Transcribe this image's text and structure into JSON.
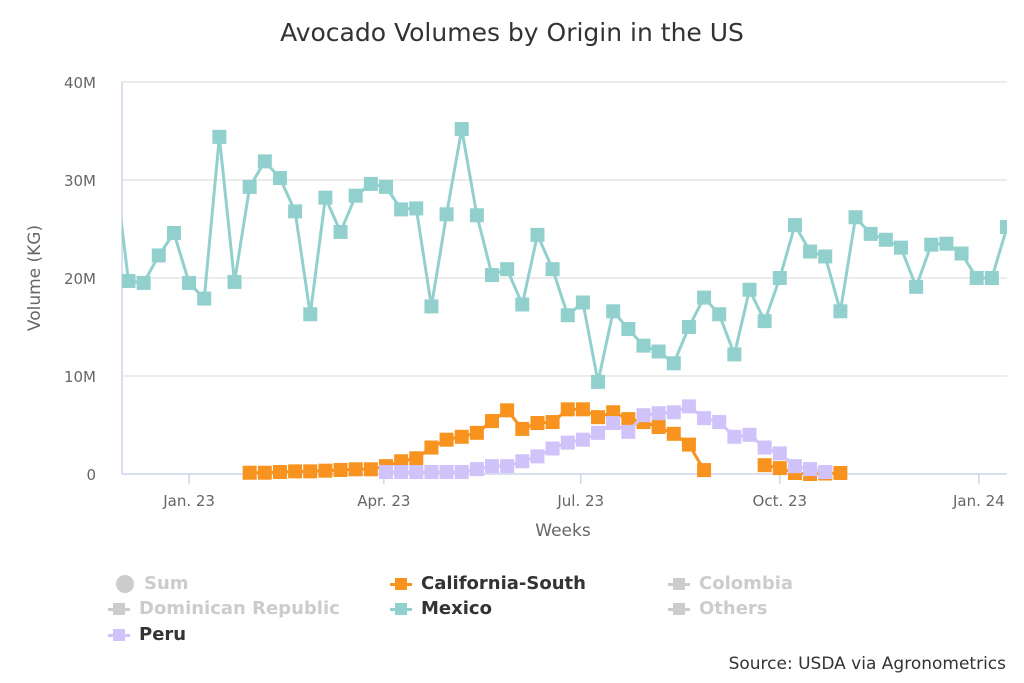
{
  "chart_data": {
    "type": "line",
    "title": "Avocado Volumes by Origin in the US",
    "xlabel": "Weeks",
    "ylabel": "Volume (KG)",
    "y_unit": "millions of KG",
    "ylim": [
      0,
      40
    ],
    "y_ticks": [
      0,
      10,
      20,
      30,
      40
    ],
    "y_tick_labels": [
      "0",
      "10M",
      "20M",
      "30M",
      "40M"
    ],
    "xlim": [
      "2022-12-01",
      "2024-01-14"
    ],
    "x_ticks": [
      "2023-01-01",
      "2023-04-01",
      "2023-07-01",
      "2023-10-01",
      "2024-01-01"
    ],
    "x_tick_labels": [
      "Jan. 23",
      "Apr. 23",
      "Jul. 23",
      "Oct. 23",
      "Jan. 24"
    ],
    "grid": "horizontal",
    "legend_position": "bottom",
    "x": [
      "2022-11-27",
      "2022-12-04",
      "2022-12-11",
      "2022-12-18",
      "2022-12-25",
      "2023-01-01",
      "2023-01-08",
      "2023-01-15",
      "2023-01-22",
      "2023-01-29",
      "2023-02-05",
      "2023-02-12",
      "2023-02-19",
      "2023-02-26",
      "2023-03-05",
      "2023-03-12",
      "2023-03-19",
      "2023-03-26",
      "2023-04-02",
      "2023-04-09",
      "2023-04-16",
      "2023-04-23",
      "2023-04-30",
      "2023-05-07",
      "2023-05-14",
      "2023-05-21",
      "2023-05-28",
      "2023-06-04",
      "2023-06-11",
      "2023-06-18",
      "2023-06-25",
      "2023-07-02",
      "2023-07-09",
      "2023-07-16",
      "2023-07-23",
      "2023-07-30",
      "2023-08-06",
      "2023-08-13",
      "2023-08-20",
      "2023-08-27",
      "2023-09-03",
      "2023-09-10",
      "2023-09-17",
      "2023-09-24",
      "2023-10-01",
      "2023-10-08",
      "2023-10-15",
      "2023-10-22",
      "2023-10-29",
      "2023-11-05",
      "2023-11-12",
      "2023-11-19",
      "2023-11-26",
      "2023-12-03",
      "2023-12-10",
      "2023-12-17",
      "2023-12-24",
      "2023-12-31",
      "2024-01-07",
      "2024-01-14"
    ],
    "series": [
      {
        "name": "Mexico",
        "color": "#92d0ce",
        "visible": true,
        "values": [
          32.3,
          19.7,
          19.5,
          22.3,
          24.6,
          19.5,
          17.9,
          34.4,
          19.6,
          29.3,
          31.9,
          30.2,
          26.8,
          16.3,
          28.2,
          24.7,
          28.4,
          29.6,
          29.3,
          27.0,
          27.1,
          17.1,
          26.5,
          35.2,
          26.4,
          20.3,
          20.9,
          17.3,
          24.4,
          20.9,
          16.2,
          17.5,
          9.4,
          16.6,
          14.8,
          13.1,
          12.5,
          11.3,
          15.0,
          18.0,
          16.3,
          12.2,
          18.8,
          15.6,
          20.0,
          25.4,
          22.7,
          22.2,
          16.6,
          26.2,
          24.5,
          23.9,
          23.1,
          19.1,
          23.4,
          23.5,
          22.5,
          20.0,
          20.0,
          25.2
        ]
      },
      {
        "name": "California-South",
        "color": "#f7931e",
        "visible": true,
        "values": [
          null,
          null,
          null,
          null,
          null,
          null,
          null,
          null,
          null,
          0.13,
          0.13,
          0.2,
          0.27,
          0.27,
          0.34,
          0.41,
          0.48,
          0.48,
          0.8,
          1.3,
          1.6,
          2.7,
          3.5,
          3.8,
          4.2,
          5.4,
          6.5,
          4.6,
          5.2,
          5.3,
          6.6,
          6.6,
          5.8,
          6.3,
          5.6,
          5.3,
          4.8,
          4.1,
          3.0,
          0.4,
          null,
          null,
          null,
          0.9,
          0.6,
          0.1,
          0.0,
          0.05,
          0.1,
          null,
          null,
          null,
          null,
          null,
          null,
          null,
          null,
          null,
          null,
          null
        ]
      },
      {
        "name": "Peru",
        "color": "#cfc3f9",
        "visible": true,
        "values": [
          null,
          null,
          null,
          null,
          null,
          null,
          null,
          null,
          null,
          null,
          null,
          null,
          null,
          null,
          null,
          null,
          null,
          null,
          0.2,
          0.2,
          0.2,
          0.2,
          0.2,
          0.2,
          0.5,
          0.8,
          0.8,
          1.3,
          1.8,
          2.6,
          3.2,
          3.5,
          4.2,
          5.2,
          4.3,
          6.0,
          6.2,
          6.3,
          6.9,
          5.7,
          5.3,
          3.8,
          4.0,
          2.7,
          2.1,
          0.8,
          0.5,
          0.2,
          null,
          null,
          null,
          null,
          null,
          null,
          null,
          null,
          null,
          null,
          null,
          null
        ]
      }
    ],
    "legend": [
      {
        "label": "Sum",
        "symbol": "circle",
        "visible": false
      },
      {
        "label": "California-South",
        "symbol": "square",
        "visible": true,
        "color": "#f7931e"
      },
      {
        "label": "Colombia",
        "symbol": "square",
        "visible": false
      },
      {
        "label": "Dominican Republic",
        "symbol": "square",
        "visible": false
      },
      {
        "label": "Mexico",
        "symbol": "square",
        "visible": true,
        "color": "#92d0ce"
      },
      {
        "label": "Others",
        "symbol": "square",
        "visible": false
      },
      {
        "label": "Peru",
        "symbol": "square",
        "visible": true,
        "color": "#cfc3f9"
      }
    ],
    "source": "Source: USDA via Agronometrics"
  }
}
